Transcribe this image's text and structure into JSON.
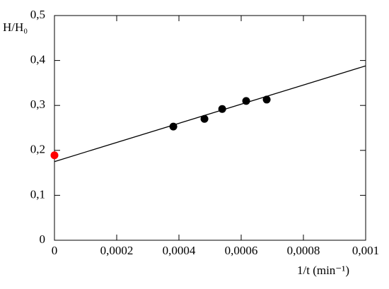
{
  "chart_data": {
    "type": "scatter",
    "y_label": "H/H₀",
    "x_label": "1/t (min⁻¹)",
    "xlim": [
      0,
      0.001
    ],
    "xticks": [
      0,
      {
        "value": 0.0002,
        "label": "0,0002"
      },
      {
        "value": 0.0004,
        "label": "0,0004"
      },
      {
        "value": 0.0006,
        "label": "0,0006"
      },
      {
        "value": 0.0008,
        "label": "0,0008"
      },
      {
        "value": 0.001,
        "label": "0,001"
      }
    ],
    "ylim": [
      0,
      0.5
    ],
    "yticks": [
      0,
      {
        "value": 0.1,
        "label": "0,1"
      },
      {
        "value": 0.2,
        "label": "0,2"
      },
      {
        "value": 0.3,
        "label": "0,3"
      },
      {
        "value": 0.4,
        "label": "0,4"
      },
      {
        "value": 0.5,
        "label": "0,5"
      }
    ],
    "series": [
      {
        "type": "scatter",
        "color": "#000000",
        "x": [
          0.000382,
          0.000482,
          0.000539,
          0.000616,
          0.000682
        ],
        "values": [
          0.253,
          0.27,
          0.292,
          0.31,
          0.313
        ]
      },
      {
        "type": "scatter",
        "color": "#ff0000",
        "x": [
          0
        ],
        "values": [
          0.189
        ]
      },
      {
        "type": "line",
        "color": "#000000",
        "x": [
          0,
          0.001
        ],
        "values": [
          0.175,
          0.388
        ]
      }
    ]
  }
}
